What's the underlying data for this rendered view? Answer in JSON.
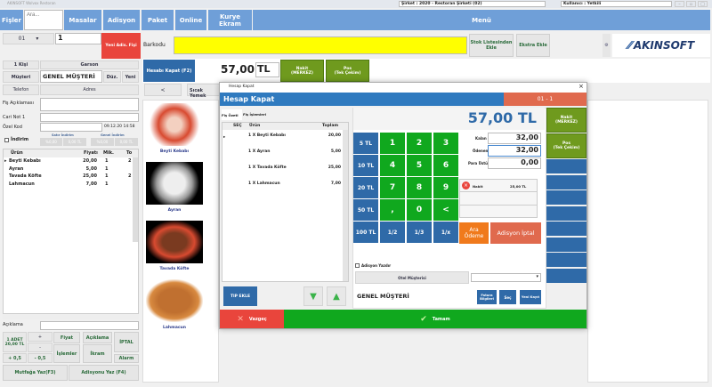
{
  "window": {
    "title": "AKINSOFT Wolvox Restoran",
    "company": "Şirket : 2020 - Restoran Şirketi (02)",
    "user": "Kullanıcı : Yetkili"
  },
  "nav": {
    "fisler": "Fişler",
    "search_placeholder": "Ara...",
    "masalar": "Masalar",
    "adisyon": "Adisyon",
    "paket": "Paket",
    "online": "Online",
    "kurye": "Kurye Ekram",
    "menu": "Menü"
  },
  "toolbar": {
    "table": "01",
    "count": "1",
    "new_fis": "Yeni Adis. Fişi",
    "barcode_label": "Barkodu",
    "barcode_value": "",
    "stok_ekle": "Stok Listesinden Ekle",
    "ekstra_ekle": "Ekstra Ekle",
    "logo": "AKINSOFT"
  },
  "payrow": {
    "hesap_kapat": "Hesabı Kapat (F2)",
    "total": "57,00",
    "currency": "TL",
    "nakit": "Nakit\n(MERKEZ)",
    "pos": "Pos\n(Tek Çekim)"
  },
  "left": {
    "kisi": "1 Kişi",
    "garson": "Garson",
    "musteri": "Müşteri",
    "musteri_value": "GENEL MÜŞTERİ",
    "duz": "Düz.",
    "yeni": "Yeni",
    "telefon": "Telefon",
    "adres": "Adres",
    "fis_aciklamasi": "Fiş Açıklaması",
    "cari_not": "Cari Not 1",
    "ozel_kod": "Özel Kod",
    "date": "09.12.20 14:58",
    "indirim": "İndirim",
    "satir_indirim": "Satır İndirim",
    "genel_indirim": "Genel İndirim",
    "disc_pct": "%0,00",
    "disc_tl": "0,00 TL",
    "disc_pct2": "%0,00",
    "disc_tl2": "0,00 TL",
    "grid": {
      "headers": [
        "Ürün",
        "Fiyatı",
        "Mik.",
        "To"
      ],
      "rows": [
        [
          "Beyti Kebabı",
          "20,00",
          "1",
          "2"
        ],
        [
          "Ayran",
          "5,00",
          "1",
          ""
        ],
        [
          "Tavada Köfte",
          "25,00",
          "1",
          "2"
        ],
        [
          "Lahmacun",
          "7,00",
          "1",
          ""
        ]
      ]
    },
    "aciklama": "Açıklama",
    "adet": "1 ADET\n20,00 TL",
    "plus": "+",
    "minus": "-",
    "plus05": "+ 0,5",
    "minus05": "- 0,5",
    "fiyat": "Fiyat",
    "aciklama_btn": "Açıklama",
    "iptal": "İPTAL",
    "islemler": "İşlemler",
    "ikram": "İkram",
    "alarm": "Alarm",
    "mutfaga": "Mutfağa Yaz(F3)",
    "adisyonu": "Adisyonu Yaz (F4)"
  },
  "food": {
    "back": "<",
    "tab": "Sıcak Yemek",
    "items": [
      "Beyti Kebabı",
      "Ayran",
      "Tavada Köfte",
      "Lahmacun"
    ]
  },
  "dialog": {
    "title": "Hesap Kapat",
    "header": "Hesap Kapat",
    "table": "01 - 1",
    "tab1": "Fiş Özeti",
    "tab2": "Fiş İşlemleri",
    "col_sec": "SEÇ",
    "col_urun": "Ürün",
    "col_toplam": "Toplam",
    "items": [
      [
        "1 X Beyti Kebabı",
        "20,00"
      ],
      [
        "1 X Ayran",
        "5,00"
      ],
      [
        "1 X Tavada Köfte",
        "25,00"
      ],
      [
        "1 X Lahmacun",
        "7,00"
      ]
    ],
    "total": "57,00 TL",
    "money": [
      "5 TL",
      "10 TL",
      "20 TL",
      "50 TL",
      "100 TL"
    ],
    "keys": [
      "1",
      "2",
      "3",
      "4",
      "5",
      "6",
      "7",
      "8",
      "9",
      ",",
      "0",
      "<",
      "1/2",
      "1/3",
      "1/x"
    ],
    "kalan_label": "Kalan",
    "kalan": "32,00",
    "odenen_label": "Ödenen",
    "odenen": "32,00",
    "para_ustu_label": "Para Üstü",
    "para_ustu": "0,00",
    "payment": {
      "type": "Nakit",
      "amount": "25,00 TL"
    },
    "ara_odeme": "Ara Ödeme",
    "adisyon_iptal": "Adisyon İptal",
    "nakit": "Nakit\n(MERKEZ)",
    "pos": "Pos\n(Tek Çekim)",
    "adisyon_yazdir": "Adisyon Yazdır",
    "otel": "Otel Müşterisi",
    "customer": "GENEL MÜŞTERİ",
    "fatura": "Fatura Bilgileri",
    "sec": "Seç",
    "yeni_kayit": "Yeni Kayıt",
    "tip_ekle": "TIP EKLE",
    "vazgec": "Vazgeç",
    "tamam": "Tamam"
  },
  "colors": {
    "nav": "#6f9fd8",
    "blue": "#2f6aa8",
    "green": "#10a81e",
    "olive": "#6f9a1e",
    "red": "#e9453c",
    "orange": "#f07a1c",
    "coral": "#e06a4e",
    "yellow": "#ffff00"
  }
}
